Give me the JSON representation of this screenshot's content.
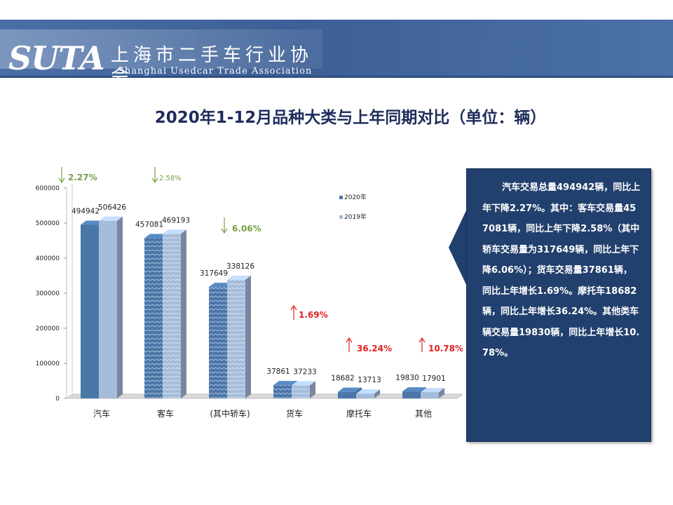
{
  "header": {
    "logo_text": "SUTA",
    "association_cn": "上海市二手车行业协会",
    "association_en": "Shanghai Usedcar Trade Association",
    "colors": {
      "banner": "#3d5f96",
      "title": "#1f2d5c"
    }
  },
  "page_title": "2020年1-12月品种大类与上年同期对比（单位：辆）",
  "info_box": {
    "text": "汽车交易总量494942辆，同比上年下降2.27%。其中：客车交易量457081辆，同比上年下降2.58%（其中轿车交易量为317649辆，同比上年下降6.06%）；货车交易量37861辆，同比上年增长1.69%。摩托车18682辆，同比上年增长36.24%。其他类车辆交易量19830辆，同比上年增长10.78%。"
  },
  "chart_data": {
    "type": "bar",
    "categories": [
      "汽车",
      "客车",
      "(其中轿车)",
      "货车",
      "摩托车",
      "其他"
    ],
    "series": [
      {
        "name": "2020年",
        "values": [
          494942,
          457081,
          317649,
          37861,
          18682,
          19830
        ],
        "color": "#4a76a8"
      },
      {
        "name": "2019年",
        "values": [
          506426,
          469193,
          338126,
          37233,
          13713,
          17901
        ],
        "color": "#a6bcdb"
      }
    ],
    "ylim": [
      0,
      600000
    ],
    "yticks": [
      0,
      100000,
      200000,
      300000,
      400000,
      500000,
      600000
    ],
    "legend_position": "right",
    "annotations": [
      {
        "category": "汽车",
        "text": "2.27%",
        "direction": "down",
        "color": "#77a046"
      },
      {
        "category": "客车",
        "text": "2.58%",
        "direction": "down",
        "color": "#77a046"
      },
      {
        "category": "(其中轿车)",
        "text": "6.06%",
        "direction": "down",
        "color": "#77a046"
      },
      {
        "category": "货车",
        "text": "1.69%",
        "direction": "up",
        "color": "#e0201e"
      },
      {
        "category": "摩托车",
        "text": "36.24%",
        "direction": "up",
        "color": "#e0201e"
      },
      {
        "category": "其他",
        "text": "10.78%",
        "direction": "up",
        "color": "#e0201e"
      }
    ]
  }
}
